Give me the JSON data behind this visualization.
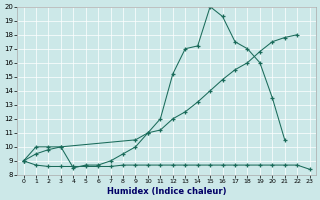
{
  "bg_color": "#cce8e8",
  "line_color": "#1a6b5a",
  "xlabel": "Humidex (Indice chaleur)",
  "xlim": [
    -0.5,
    23.5
  ],
  "ylim": [
    8,
    20
  ],
  "yticks": [
    8,
    9,
    10,
    11,
    12,
    13,
    14,
    15,
    16,
    17,
    18,
    19,
    20
  ],
  "xticks": [
    0,
    1,
    2,
    3,
    4,
    5,
    6,
    7,
    8,
    9,
    10,
    11,
    12,
    13,
    14,
    15,
    16,
    17,
    18,
    19,
    20,
    21,
    22,
    23
  ],
  "line1_x": [
    0,
    1,
    2,
    3,
    4,
    5,
    6,
    7,
    8,
    9,
    10,
    11,
    12,
    13,
    14,
    15,
    16,
    17,
    18,
    19,
    20,
    21
  ],
  "line1_y": [
    9,
    10,
    10,
    10,
    8.5,
    8.7,
    8.7,
    9,
    9.5,
    10,
    11,
    12,
    15.2,
    17,
    17.2,
    20,
    19.3,
    17.5,
    17,
    16,
    13.5,
    10.5
  ],
  "line2_x": [
    0,
    1,
    2,
    3,
    9,
    10,
    11,
    12,
    13,
    14,
    15,
    16,
    17,
    18,
    19,
    20,
    21,
    22
  ],
  "line2_y": [
    9,
    9.5,
    9.8,
    10,
    10.5,
    11,
    11.2,
    12,
    12.5,
    13.2,
    14,
    14.8,
    15.5,
    16,
    16.8,
    17.5,
    17.8,
    18
  ],
  "line3_x": [
    0,
    1,
    2,
    3,
    4,
    5,
    6,
    7,
    8,
    9,
    10,
    11,
    12,
    13,
    14,
    15,
    16,
    17,
    18,
    19,
    20,
    21,
    22,
    23
  ],
  "line3_y": [
    9,
    8.7,
    8.6,
    8.6,
    8.6,
    8.6,
    8.6,
    8.6,
    8.7,
    8.7,
    8.7,
    8.7,
    8.7,
    8.7,
    8.7,
    8.7,
    8.7,
    8.7,
    8.7,
    8.7,
    8.7,
    8.7,
    8.7,
    8.4
  ]
}
